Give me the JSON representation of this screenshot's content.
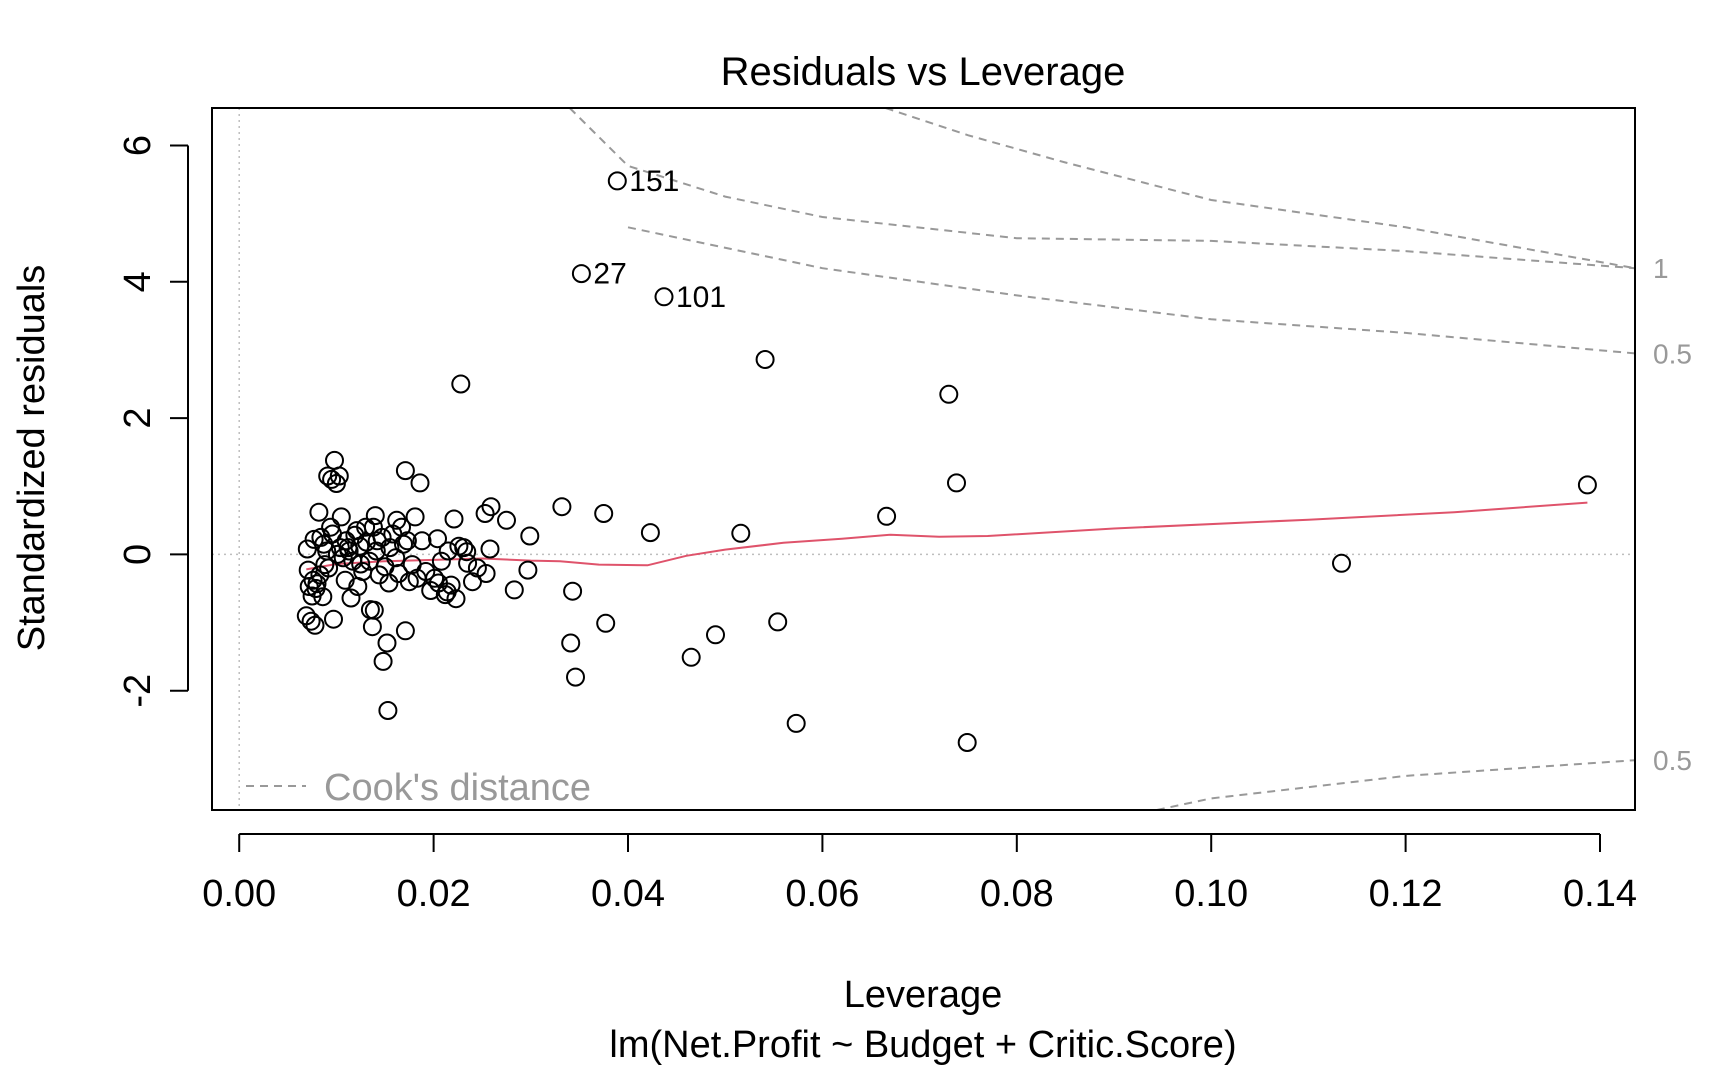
{
  "chart_data": {
    "type": "scatter",
    "title": "Residuals vs Leverage",
    "xlabel": "Leverage",
    "subtitle": "lm(Net.Profit ~ Budget + Critic.Score)",
    "ylabel": "Standardized residuals",
    "xlim": [
      -0.0028,
      0.1436
    ],
    "ylim": [
      -3.75,
      6.55
    ],
    "x_ticks": [
      "0.00",
      "0.02",
      "0.04",
      "0.06",
      "0.08",
      "0.10",
      "0.12",
      "0.14"
    ],
    "y_ticks": [
      "-2",
      "0",
      "2",
      "4",
      "6"
    ],
    "grid": false,
    "legend": {
      "label": "Cook's distance",
      "placement": "bottom-left"
    },
    "colors": {
      "points": "#000000",
      "smooth": "#DF536B",
      "cook": "#999999",
      "reference": "#BEBEBE"
    },
    "points": [
      [
        0.0389,
        5.48
      ],
      [
        0.0352,
        4.12
      ],
      [
        0.0437,
        3.78
      ],
      [
        0.0541,
        2.86
      ],
      [
        0.0228,
        2.5
      ],
      [
        0.073,
        2.35
      ],
      [
        0.0738,
        1.05
      ],
      [
        0.1387,
        1.02
      ],
      [
        0.0332,
        0.7
      ],
      [
        0.0375,
        0.6
      ],
      [
        0.0423,
        0.32
      ],
      [
        0.0516,
        0.31
      ],
      [
        0.0666,
        0.56
      ],
      [
        0.1134,
        -0.13
      ],
      [
        0.0343,
        -0.54
      ],
      [
        0.0377,
        -1.01
      ],
      [
        0.0554,
        -0.99
      ],
      [
        0.0341,
        -1.3
      ],
      [
        0.049,
        -1.18
      ],
      [
        0.0465,
        -1.51
      ],
      [
        0.0346,
        -1.8
      ],
      [
        0.0573,
        -2.48
      ],
      [
        0.0749,
        -2.76
      ],
      [
        0.0299,
        0.27
      ],
      [
        0.0297,
        -0.23
      ],
      [
        0.0283,
        -0.52
      ],
      [
        0.0275,
        0.5
      ],
      [
        0.0259,
        0.7
      ],
      [
        0.0253,
        0.6
      ],
      [
        0.0258,
        0.08
      ],
      [
        0.0254,
        -0.28
      ],
      [
        0.0234,
        0.04
      ],
      [
        0.0235,
        -0.13
      ],
      [
        0.0221,
        0.52
      ],
      [
        0.0223,
        -0.65
      ],
      [
        0.0212,
        -0.59
      ],
      [
        0.0204,
        0.23
      ],
      [
        0.0205,
        -0.42
      ],
      [
        0.0197,
        -0.53
      ],
      [
        0.0186,
        1.05
      ],
      [
        0.0181,
        0.55
      ],
      [
        0.0171,
        1.23
      ],
      [
        0.0173,
        0.2
      ],
      [
        0.0171,
        -1.12
      ],
      [
        0.0162,
        0.5
      ],
      [
        0.0155,
        0.1
      ],
      [
        0.0152,
        -1.3
      ],
      [
        0.0153,
        -2.29
      ],
      [
        0.0148,
        -1.57
      ],
      [
        0.014,
        0.57
      ],
      [
        0.0142,
        0.2
      ],
      [
        0.0139,
        -0.82
      ],
      [
        0.0135,
        -0.81
      ],
      [
        0.0137,
        -1.06
      ],
      [
        0.013,
        0.4
      ],
      [
        0.0125,
        -0.14
      ],
      [
        0.0122,
        -0.47
      ],
      [
        0.0119,
        0.28
      ],
      [
        0.0115,
        -0.64
      ],
      [
        0.0112,
        0.1
      ],
      [
        0.0109,
        -0.38
      ],
      [
        0.0105,
        0.55
      ],
      [
        0.0103,
        1.15
      ],
      [
        0.01,
        1.04
      ],
      [
        0.0098,
        1.38
      ],
      [
        0.0095,
        1.1
      ],
      [
        0.0091,
        1.15
      ],
      [
        0.0097,
        -0.95
      ],
      [
        0.0094,
        0.4
      ],
      [
        0.009,
        0.05
      ],
      [
        0.0088,
        -0.15
      ],
      [
        0.0086,
        -0.62
      ],
      [
        0.0084,
        0.25
      ],
      [
        0.0082,
        0.62
      ],
      [
        0.008,
        -0.43
      ],
      [
        0.0078,
        -1.04
      ],
      [
        0.0077,
        0.22
      ],
      [
        0.0075,
        -0.61
      ],
      [
        0.0074,
        -0.98
      ],
      [
        0.0072,
        -0.47
      ],
      [
        0.007,
        0.08
      ],
      [
        0.0069,
        -0.9
      ],
      [
        0.0071,
        -0.23
      ],
      [
        0.0076,
        -0.38
      ],
      [
        0.0079,
        -0.5
      ],
      [
        0.0083,
        -0.3
      ],
      [
        0.0087,
        0.15
      ],
      [
        0.0092,
        -0.2
      ],
      [
        0.0096,
        0.3
      ],
      [
        0.0101,
        0.0
      ],
      [
        0.0104,
        0.1
      ],
      [
        0.0107,
        -0.05
      ],
      [
        0.011,
        0.2
      ],
      [
        0.0113,
        0.05
      ],
      [
        0.0117,
        -0.1
      ],
      [
        0.0121,
        0.35
      ],
      [
        0.0124,
        0.12
      ],
      [
        0.0127,
        -0.25
      ],
      [
        0.0131,
        0.18
      ],
      [
        0.0134,
        -0.1
      ],
      [
        0.0138,
        0.4
      ],
      [
        0.0141,
        0.05
      ],
      [
        0.0144,
        -0.3
      ],
      [
        0.0147,
        0.25
      ],
      [
        0.015,
        -0.18
      ],
      [
        0.0154,
        -0.42
      ],
      [
        0.0158,
        0.3
      ],
      [
        0.0161,
        -0.05
      ],
      [
        0.0164,
        -0.28
      ],
      [
        0.0167,
        0.4
      ],
      [
        0.0169,
        0.15
      ],
      [
        0.0175,
        -0.4
      ],
      [
        0.0178,
        -0.15
      ],
      [
        0.0183,
        -0.35
      ],
      [
        0.0188,
        0.2
      ],
      [
        0.0192,
        -0.25
      ],
      [
        0.0201,
        -0.35
      ],
      [
        0.0208,
        -0.1
      ],
      [
        0.0215,
        0.05
      ],
      [
        0.0218,
        -0.45
      ],
      [
        0.0231,
        0.1
      ],
      [
        0.024,
        -0.4
      ],
      [
        0.0226,
        0.12
      ],
      [
        0.0245,
        -0.2
      ],
      [
        0.0214,
        -0.55
      ]
    ],
    "labeled_points": [
      {
        "label": "151",
        "x": 0.0389,
        "y": 5.48
      },
      {
        "label": "27",
        "x": 0.0352,
        "y": 4.12
      },
      {
        "label": "101",
        "x": 0.0437,
        "y": 3.78
      }
    ],
    "smooth_line": [
      [
        0.0069,
        -0.22
      ],
      [
        0.01,
        -0.14
      ],
      [
        0.015,
        -0.1
      ],
      [
        0.02,
        -0.08
      ],
      [
        0.025,
        -0.06
      ],
      [
        0.03,
        -0.09
      ],
      [
        0.033,
        -0.1
      ],
      [
        0.037,
        -0.15
      ],
      [
        0.042,
        -0.16
      ],
      [
        0.046,
        -0.02
      ],
      [
        0.05,
        0.07
      ],
      [
        0.056,
        0.17
      ],
      [
        0.062,
        0.23
      ],
      [
        0.067,
        0.29
      ],
      [
        0.072,
        0.26
      ],
      [
        0.077,
        0.27
      ],
      [
        0.09,
        0.38
      ],
      [
        0.11,
        0.51
      ],
      [
        0.125,
        0.62
      ],
      [
        0.1387,
        0.76
      ]
    ],
    "cook_contours": [
      {
        "label": "1",
        "points": [
          [
            0.034,
            6.55
          ],
          [
            0.04,
            5.7
          ],
          [
            0.05,
            5.25
          ],
          [
            0.06,
            4.95
          ],
          [
            0.08,
            4.64
          ],
          [
            0.1,
            4.6
          ],
          [
            0.12,
            4.45
          ],
          [
            0.1436,
            4.2
          ]
        ]
      },
      {
        "label": "0.5",
        "points": [
          [
            0.0665,
            6.55
          ],
          [
            0.075,
            6.15
          ],
          [
            0.085,
            5.75
          ],
          [
            0.1,
            5.2
          ],
          [
            0.12,
            4.8
          ],
          [
            0.1436,
            4.2
          ]
        ]
      },
      {
        "label": "0.5",
        "points": [
          [
            0.04,
            4.8
          ],
          [
            0.06,
            4.2
          ],
          [
            0.08,
            3.8
          ],
          [
            0.1,
            3.45
          ],
          [
            0.12,
            3.25
          ],
          [
            0.1436,
            2.95
          ]
        ]
      },
      {
        "label": "0.5",
        "points": [
          [
            0.0944,
            -3.75
          ],
          [
            0.1,
            -3.58
          ],
          [
            0.12,
            -3.25
          ],
          [
            0.1436,
            -3.02
          ]
        ]
      }
    ],
    "cook_margin_labels": [
      {
        "label": "1",
        "y": 4.2
      },
      {
        "label": "0.5",
        "y": 2.95
      },
      {
        "label": "0.5",
        "y": -3.02
      }
    ]
  }
}
